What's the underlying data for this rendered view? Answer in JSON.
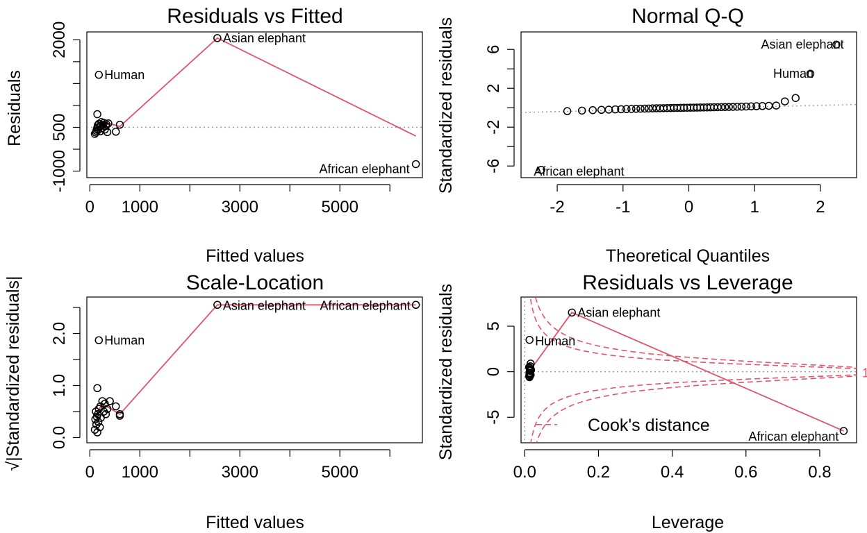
{
  "colors": {
    "points": "#000000",
    "smoother": "#DF536B",
    "reference": "#999999",
    "cook": "#DF536B"
  },
  "chart_data": [
    {
      "id": "resid_fitted",
      "type": "scatter",
      "title": "Residuals vs Fitted",
      "xlabel": "Fitted values",
      "ylabel": "Residuals",
      "xlim": [
        -60,
        6650
      ],
      "ylim": [
        -1150,
        2180
      ],
      "xticks": [
        0,
        1000,
        2000,
        3000,
        4000,
        5000,
        6000
      ],
      "xtick_labels": [
        "0",
        "1000",
        "",
        "3000",
        "",
        "5000",
        ""
      ],
      "yticks": [
        -1000,
        -500,
        0,
        500,
        1000,
        1500,
        2000
      ],
      "ytick_labels": [
        "-1000",
        "",
        "500",
        "",
        "",
        "",
        "2000"
      ],
      "ref_line": {
        "type": "h",
        "value": 0
      },
      "points": [
        [
          100,
          -150
        ],
        [
          120,
          -120
        ],
        [
          130,
          -80
        ],
        [
          140,
          -40
        ],
        [
          150,
          0
        ],
        [
          160,
          50
        ],
        [
          170,
          -60
        ],
        [
          180,
          80
        ],
        [
          200,
          20
        ],
        [
          210,
          -90
        ],
        [
          220,
          40
        ],
        [
          230,
          120
        ],
        [
          250,
          -20
        ],
        [
          260,
          60
        ],
        [
          280,
          100
        ],
        [
          300,
          -50
        ],
        [
          320,
          30
        ],
        [
          330,
          70
        ],
        [
          350,
          -110
        ],
        [
          370,
          90
        ],
        [
          150,
          300
        ],
        [
          520,
          -100
        ],
        [
          600,
          60
        ],
        [
          180,
          1200
        ],
        [
          2550,
          2040
        ],
        [
          6520,
          -840
        ]
      ],
      "point_labels": [
        {
          "label": "Human",
          "x": 180,
          "y": 1200
        },
        {
          "label": "Asian elephant",
          "x": 2550,
          "y": 2040
        },
        {
          "label": "African elephant",
          "x": 6520,
          "y": -840
        }
      ],
      "smoother": [
        [
          100,
          -100
        ],
        [
          200,
          0
        ],
        [
          350,
          100
        ],
        [
          600,
          20
        ],
        [
          2550,
          2040
        ],
        [
          6520,
          -200
        ]
      ]
    },
    {
      "id": "normal_qq",
      "type": "scatter",
      "title": "Normal Q-Q",
      "xlabel": "Theoretical Quantiles",
      "ylabel": "Standardized residuals",
      "xlim": [
        -2.55,
        2.55
      ],
      "ylim": [
        -7.2,
        7.8
      ],
      "xticks": [
        -2,
        -1,
        0,
        1,
        2
      ],
      "xtick_labels": [
        "-2",
        "-1",
        "0",
        "1",
        "2"
      ],
      "yticks": [
        -6,
        -4,
        -2,
        0,
        2,
        4,
        6
      ],
      "ytick_labels": [
        "-6",
        "",
        "-2",
        "",
        "2",
        "",
        "6"
      ],
      "ref_line": {
        "type": "ab",
        "intercept": -0.08,
        "slope": 0.16
      },
      "point_labels": [
        {
          "label": "Asian elephant",
          "x": 2.44,
          "y": 6.5
        },
        {
          "label": "Human",
          "x": 1.98,
          "y": 3.5
        },
        {
          "label": "African elephant",
          "x": -2.44,
          "y": -6.4
        }
      ]
    },
    {
      "id": "scale_location",
      "type": "scatter",
      "title": "Scale-Location",
      "xlabel": "Fitted values",
      "ylabel": "√|Standardized residuals|",
      "xlim": [
        -60,
        6650
      ],
      "ylim": [
        -0.1,
        2.7
      ],
      "xticks": [
        0,
        1000,
        2000,
        3000,
        4000,
        5000,
        6000
      ],
      "xtick_labels": [
        "0",
        "1000",
        "",
        "3000",
        "",
        "5000",
        ""
      ],
      "yticks": [
        0.0,
        0.5,
        1.0,
        1.5,
        2.0,
        2.5
      ],
      "ytick_labels": [
        "0.0",
        "",
        "1.0",
        "",
        "2.0",
        ""
      ],
      "points": [
        [
          100,
          0.15
        ],
        [
          110,
          0.35
        ],
        [
          120,
          0.5
        ],
        [
          130,
          0.25
        ],
        [
          140,
          0.4
        ],
        [
          150,
          0.1
        ],
        [
          160,
          0.45
        ],
        [
          170,
          0.3
        ],
        [
          180,
          0.55
        ],
        [
          200,
          0.2
        ],
        [
          210,
          0.6
        ],
        [
          220,
          0.38
        ],
        [
          250,
          0.7
        ],
        [
          280,
          0.5
        ],
        [
          300,
          0.65
        ],
        [
          320,
          0.45
        ],
        [
          350,
          0.55
        ],
        [
          400,
          0.7
        ],
        [
          150,
          0.95
        ],
        [
          520,
          0.6
        ],
        [
          600,
          0.45
        ],
        [
          600,
          0.42
        ],
        [
          180,
          1.87
        ],
        [
          2550,
          2.55
        ],
        [
          6520,
          2.55
        ]
      ],
      "point_labels": [
        {
          "label": "Human",
          "x": 180,
          "y": 1.87
        },
        {
          "label": "Asian elephant",
          "x": 2550,
          "y": 2.55
        },
        {
          "label": "African elephant",
          "x": 6520,
          "y": 2.55
        }
      ],
      "smoother": [
        [
          100,
          0.4
        ],
        [
          250,
          0.65
        ],
        [
          600,
          0.45
        ],
        [
          2550,
          2.55
        ],
        [
          6520,
          2.55
        ]
      ]
    },
    {
      "id": "resid_leverage",
      "type": "scatter",
      "title": "Residuals vs Leverage",
      "xlabel": "Leverage",
      "ylabel": "Standardized residuals",
      "xlim": [
        -0.01,
        0.9
      ],
      "ylim": [
        -7.8,
        8.2
      ],
      "xticks": [
        0.0,
        0.2,
        0.4,
        0.6,
        0.8
      ],
      "xtick_labels": [
        "0.0",
        "0.2",
        "0.4",
        "0.6",
        "0.8"
      ],
      "yticks": [
        -5,
        0,
        5
      ],
      "ytick_labels": [
        "-5",
        "0",
        "5"
      ],
      "points": [
        [
          0.012,
          -0.5
        ],
        [
          0.013,
          -0.3
        ],
        [
          0.014,
          0.1
        ],
        [
          0.015,
          -0.2
        ],
        [
          0.016,
          0.3
        ],
        [
          0.012,
          0.5
        ],
        [
          0.014,
          -0.4
        ],
        [
          0.016,
          0.9
        ],
        [
          0.015,
          0.6
        ],
        [
          0.013,
          -0.1
        ],
        [
          0.017,
          0.2
        ],
        [
          0.014,
          0.4
        ],
        [
          0.013,
          -0.6
        ],
        [
          0.016,
          -0.35
        ],
        [
          0.013,
          3.5
        ],
        [
          0.128,
          6.5
        ],
        [
          0.865,
          -6.5
        ]
      ],
      "point_labels": [
        {
          "label": "Asian elephant",
          "x": 0.128,
          "y": 6.5
        },
        {
          "label": "Human",
          "x": 0.013,
          "y": 3.5
        },
        {
          "label": "African elephant",
          "x": 0.865,
          "y": -6.5
        }
      ],
      "smoother": [
        [
          0.012,
          0
        ],
        [
          0.128,
          6.5
        ],
        [
          0.865,
          -6.5
        ]
      ],
      "cook_levels": [
        0.5,
        1
      ],
      "cook_level_labels": [
        "1"
      ],
      "cook_legend": "Cook's distance"
    }
  ]
}
